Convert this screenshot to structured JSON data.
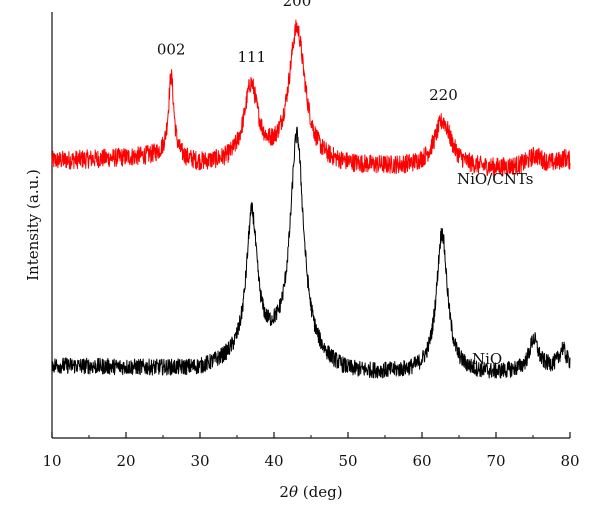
{
  "chart_data": {
    "type": "line",
    "title": "",
    "xlabel_prefix": "2",
    "xlabel_symbol": "θ",
    "xlabel_suffix": " (deg)",
    "ylabel": "Intensity (a.u.)",
    "xlim": [
      10,
      80
    ],
    "ylim": [
      0,
      100
    ],
    "x_ticks": [
      "10",
      "20",
      "30",
      "40",
      "50",
      "60",
      "70",
      "80"
    ],
    "y_ticks_shown": false,
    "series": [
      {
        "name": "NiO/CNTs",
        "color": "#ff0000",
        "baseline": 64,
        "noise": 2.2,
        "drift": [
          [
            10,
            65
          ],
          [
            25,
            66
          ],
          [
            30,
            64
          ],
          [
            50,
            63.5
          ],
          [
            70,
            63
          ],
          [
            80,
            64
          ]
        ],
        "peaks": [
          {
            "x": 26.1,
            "h": 19,
            "w": 0.45
          },
          {
            "x": 36.9,
            "h": 18,
            "w": 1.15
          },
          {
            "x": 43.1,
            "h": 32,
            "w": 1.35
          },
          {
            "x": 62.8,
            "h": 11,
            "w": 1.4
          },
          {
            "x": 75.3,
            "h": 2.5,
            "w": 1.2
          },
          {
            "x": 79.3,
            "h": 1.5,
            "w": 0.8
          }
        ]
      },
      {
        "name": "NiO",
        "color": "#000000",
        "baseline": 16,
        "noise": 1.9,
        "drift": [
          [
            10,
            17
          ],
          [
            30,
            16
          ],
          [
            40,
            20
          ],
          [
            50,
            15
          ],
          [
            70,
            15
          ],
          [
            80,
            17
          ]
        ],
        "peaks": [
          {
            "x": 37.0,
            "h": 33,
            "w": 0.9
          },
          {
            "x": 43.1,
            "h": 52,
            "w": 1.1
          },
          {
            "x": 62.7,
            "h": 33,
            "w": 0.9
          },
          {
            "x": 75.1,
            "h": 7,
            "w": 0.7
          },
          {
            "x": 79.0,
            "h": 4,
            "w": 0.5
          }
        ]
      }
    ],
    "annotations": [
      {
        "text": "002",
        "x": 26.1
      },
      {
        "text": "111",
        "x": 37.0
      },
      {
        "text": "200",
        "x": 43.1
      },
      {
        "text": "220",
        "x": 62.9
      }
    ]
  }
}
